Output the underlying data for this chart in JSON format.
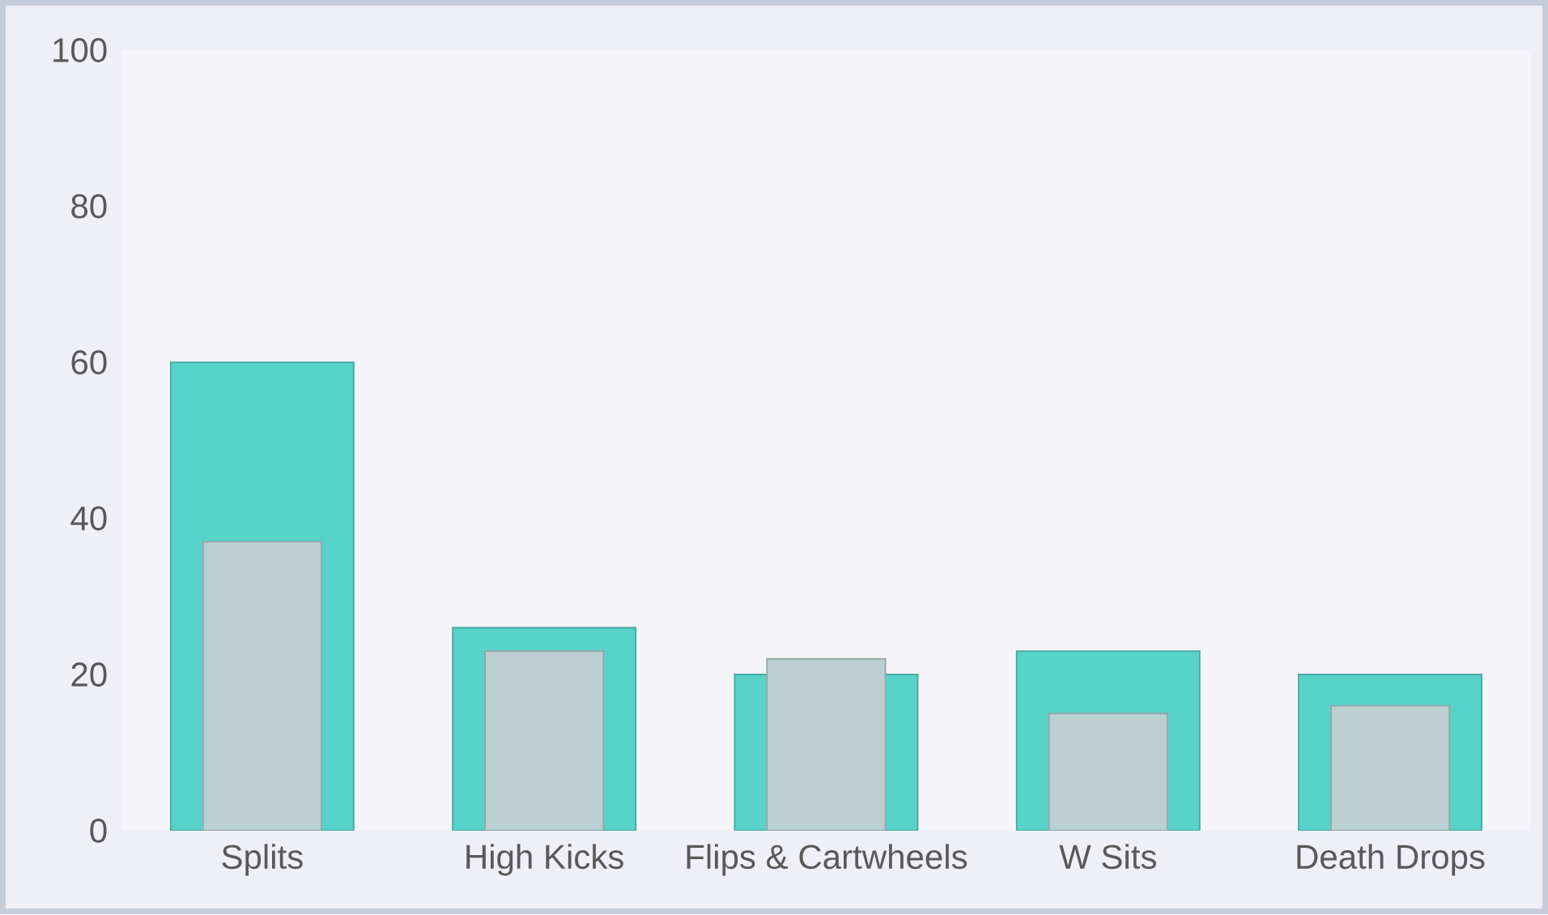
{
  "chart_data": {
    "type": "bar",
    "categories": [
      "Splits",
      "High Kicks",
      "Flips & Cartwheels",
      "W Sits",
      "Death Drops"
    ],
    "series": [
      {
        "color": "#57d3c9",
        "values": [
          60,
          26,
          20,
          23,
          20
        ]
      },
      {
        "color": "#bcd0d3",
        "values": [
          37,
          23,
          22,
          15,
          16
        ]
      }
    ],
    "ylim": [
      0,
      100
    ],
    "yticks": [
      0,
      20,
      40,
      60,
      80,
      100
    ],
    "grid": false
  }
}
